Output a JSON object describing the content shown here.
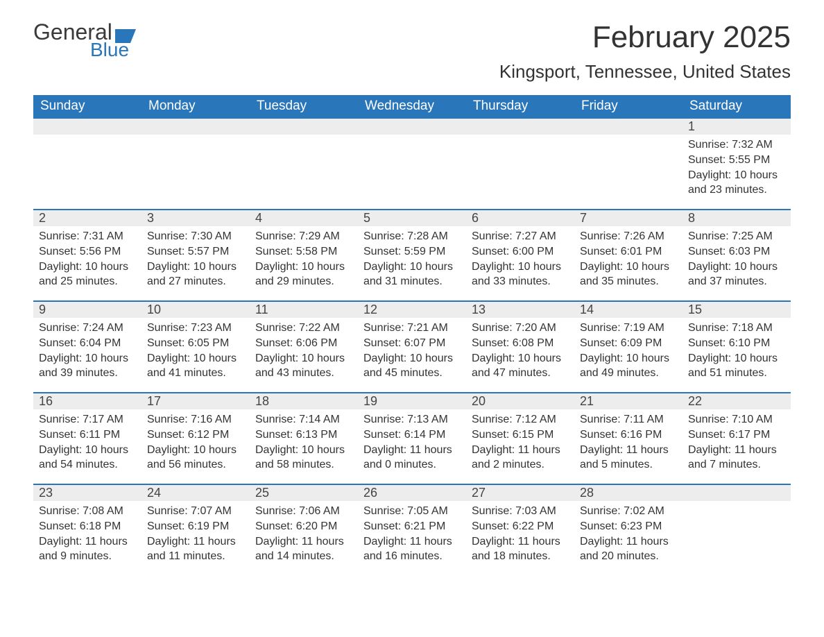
{
  "logo": {
    "text1": "General",
    "text2": "Blue",
    "accent": "#2a76bb"
  },
  "title": "February 2025",
  "location": "Kingsport, Tennessee, United States",
  "colors": {
    "header_bg": "#2a76bb",
    "header_fg": "#ffffff",
    "daybar_bg": "#ededed",
    "border_top": "#2a76bb",
    "text": "#333333"
  },
  "columns": [
    "Sunday",
    "Monday",
    "Tuesday",
    "Wednesday",
    "Thursday",
    "Friday",
    "Saturday"
  ],
  "weeks": [
    [
      null,
      null,
      null,
      null,
      null,
      null,
      {
        "n": "1",
        "sr": "Sunrise: 7:32 AM",
        "ss": "Sunset: 5:55 PM",
        "dl": "Daylight: 10 hours and 23 minutes."
      }
    ],
    [
      {
        "n": "2",
        "sr": "Sunrise: 7:31 AM",
        "ss": "Sunset: 5:56 PM",
        "dl": "Daylight: 10 hours and 25 minutes."
      },
      {
        "n": "3",
        "sr": "Sunrise: 7:30 AM",
        "ss": "Sunset: 5:57 PM",
        "dl": "Daylight: 10 hours and 27 minutes."
      },
      {
        "n": "4",
        "sr": "Sunrise: 7:29 AM",
        "ss": "Sunset: 5:58 PM",
        "dl": "Daylight: 10 hours and 29 minutes."
      },
      {
        "n": "5",
        "sr": "Sunrise: 7:28 AM",
        "ss": "Sunset: 5:59 PM",
        "dl": "Daylight: 10 hours and 31 minutes."
      },
      {
        "n": "6",
        "sr": "Sunrise: 7:27 AM",
        "ss": "Sunset: 6:00 PM",
        "dl": "Daylight: 10 hours and 33 minutes."
      },
      {
        "n": "7",
        "sr": "Sunrise: 7:26 AM",
        "ss": "Sunset: 6:01 PM",
        "dl": "Daylight: 10 hours and 35 minutes."
      },
      {
        "n": "8",
        "sr": "Sunrise: 7:25 AM",
        "ss": "Sunset: 6:03 PM",
        "dl": "Daylight: 10 hours and 37 minutes."
      }
    ],
    [
      {
        "n": "9",
        "sr": "Sunrise: 7:24 AM",
        "ss": "Sunset: 6:04 PM",
        "dl": "Daylight: 10 hours and 39 minutes."
      },
      {
        "n": "10",
        "sr": "Sunrise: 7:23 AM",
        "ss": "Sunset: 6:05 PM",
        "dl": "Daylight: 10 hours and 41 minutes."
      },
      {
        "n": "11",
        "sr": "Sunrise: 7:22 AM",
        "ss": "Sunset: 6:06 PM",
        "dl": "Daylight: 10 hours and 43 minutes."
      },
      {
        "n": "12",
        "sr": "Sunrise: 7:21 AM",
        "ss": "Sunset: 6:07 PM",
        "dl": "Daylight: 10 hours and 45 minutes."
      },
      {
        "n": "13",
        "sr": "Sunrise: 7:20 AM",
        "ss": "Sunset: 6:08 PM",
        "dl": "Daylight: 10 hours and 47 minutes."
      },
      {
        "n": "14",
        "sr": "Sunrise: 7:19 AM",
        "ss": "Sunset: 6:09 PM",
        "dl": "Daylight: 10 hours and 49 minutes."
      },
      {
        "n": "15",
        "sr": "Sunrise: 7:18 AM",
        "ss": "Sunset: 6:10 PM",
        "dl": "Daylight: 10 hours and 51 minutes."
      }
    ],
    [
      {
        "n": "16",
        "sr": "Sunrise: 7:17 AM",
        "ss": "Sunset: 6:11 PM",
        "dl": "Daylight: 10 hours and 54 minutes."
      },
      {
        "n": "17",
        "sr": "Sunrise: 7:16 AM",
        "ss": "Sunset: 6:12 PM",
        "dl": "Daylight: 10 hours and 56 minutes."
      },
      {
        "n": "18",
        "sr": "Sunrise: 7:14 AM",
        "ss": "Sunset: 6:13 PM",
        "dl": "Daylight: 10 hours and 58 minutes."
      },
      {
        "n": "19",
        "sr": "Sunrise: 7:13 AM",
        "ss": "Sunset: 6:14 PM",
        "dl": "Daylight: 11 hours and 0 minutes."
      },
      {
        "n": "20",
        "sr": "Sunrise: 7:12 AM",
        "ss": "Sunset: 6:15 PM",
        "dl": "Daylight: 11 hours and 2 minutes."
      },
      {
        "n": "21",
        "sr": "Sunrise: 7:11 AM",
        "ss": "Sunset: 6:16 PM",
        "dl": "Daylight: 11 hours and 5 minutes."
      },
      {
        "n": "22",
        "sr": "Sunrise: 7:10 AM",
        "ss": "Sunset: 6:17 PM",
        "dl": "Daylight: 11 hours and 7 minutes."
      }
    ],
    [
      {
        "n": "23",
        "sr": "Sunrise: 7:08 AM",
        "ss": "Sunset: 6:18 PM",
        "dl": "Daylight: 11 hours and 9 minutes."
      },
      {
        "n": "24",
        "sr": "Sunrise: 7:07 AM",
        "ss": "Sunset: 6:19 PM",
        "dl": "Daylight: 11 hours and 11 minutes."
      },
      {
        "n": "25",
        "sr": "Sunrise: 7:06 AM",
        "ss": "Sunset: 6:20 PM",
        "dl": "Daylight: 11 hours and 14 minutes."
      },
      {
        "n": "26",
        "sr": "Sunrise: 7:05 AM",
        "ss": "Sunset: 6:21 PM",
        "dl": "Daylight: 11 hours and 16 minutes."
      },
      {
        "n": "27",
        "sr": "Sunrise: 7:03 AM",
        "ss": "Sunset: 6:22 PM",
        "dl": "Daylight: 11 hours and 18 minutes."
      },
      {
        "n": "28",
        "sr": "Sunrise: 7:02 AM",
        "ss": "Sunset: 6:23 PM",
        "dl": "Daylight: 11 hours and 20 minutes."
      },
      null
    ]
  ]
}
